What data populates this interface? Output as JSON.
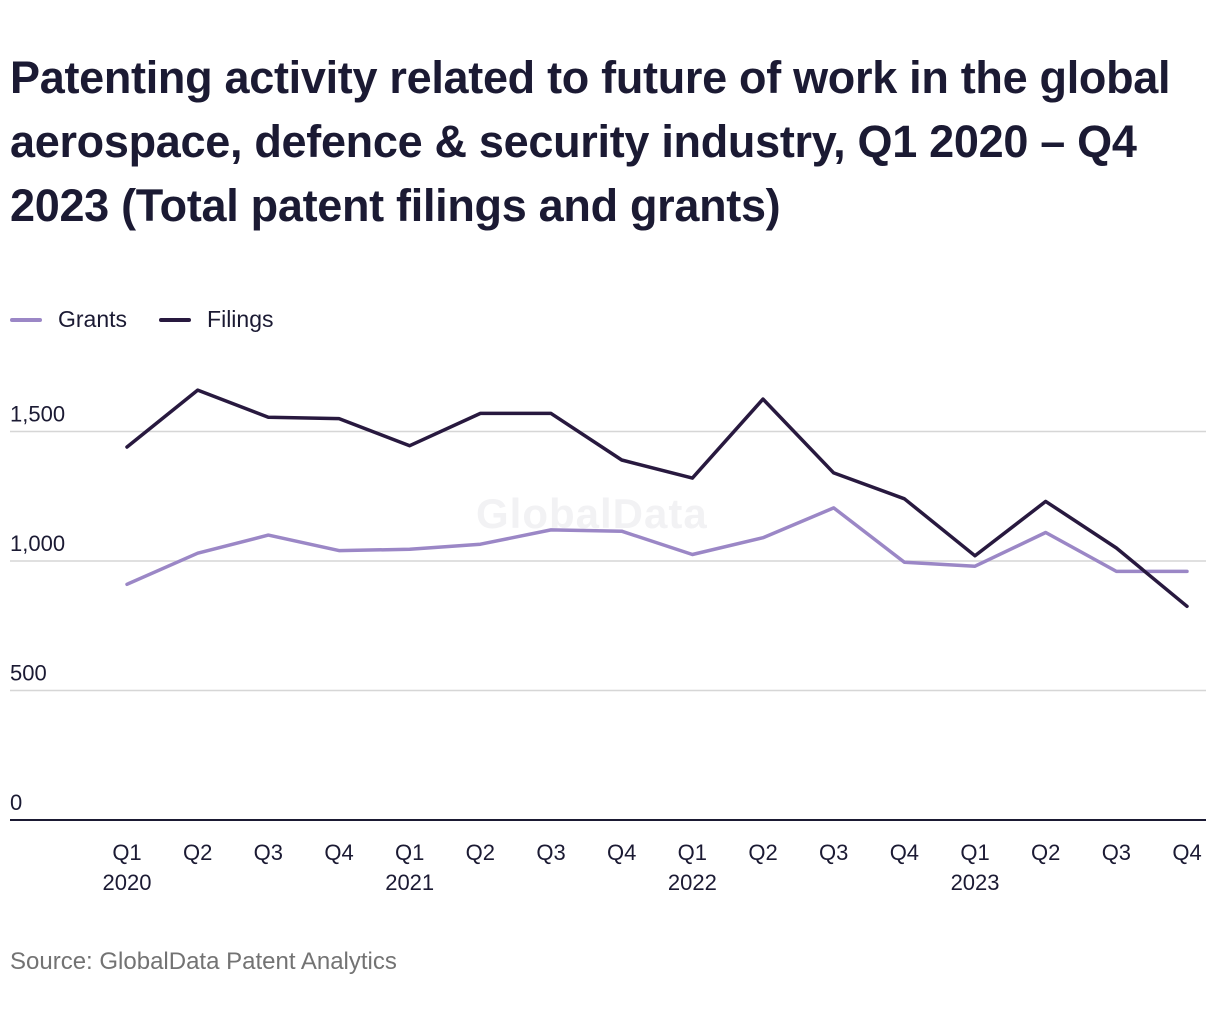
{
  "title": "Patenting activity related to future of work in the global aerospace, defence & security industry, Q1 2020 – Q4 2023 (Total patent filings and grants)",
  "source": "Source: GlobalData Patent Analytics",
  "watermark": "GlobalData",
  "colors": {
    "grants": "#9b87c6",
    "filings": "#28193f",
    "grid": "#d6d6d6",
    "axis": "#1b1a33",
    "text": "#1b1a33"
  },
  "legend": [
    {
      "label": "Grants",
      "color": "#9b87c6"
    },
    {
      "label": "Filings",
      "color": "#28193f"
    }
  ],
  "chart_data": {
    "type": "line",
    "categories": [
      "Q1 2020",
      "Q2 2020",
      "Q3 2020",
      "Q4 2020",
      "Q1 2021",
      "Q2 2021",
      "Q3 2021",
      "Q4 2021",
      "Q1 2022",
      "Q2 2022",
      "Q3 2022",
      "Q4 2022",
      "Q1 2023",
      "Q2 2023",
      "Q3 2023",
      "Q4 2023"
    ],
    "x_tick_labels": [
      [
        "Q1",
        "2020"
      ],
      [
        "Q2",
        ""
      ],
      [
        "Q3",
        ""
      ],
      [
        "Q4",
        ""
      ],
      [
        "Q1",
        "2021"
      ],
      [
        "Q2",
        ""
      ],
      [
        "Q3",
        ""
      ],
      [
        "Q4",
        ""
      ],
      [
        "Q1",
        "2022"
      ],
      [
        "Q2",
        ""
      ],
      [
        "Q3",
        ""
      ],
      [
        "Q4",
        ""
      ],
      [
        "Q1",
        "2023"
      ],
      [
        "Q2",
        ""
      ],
      [
        "Q3",
        ""
      ],
      [
        "Q4",
        ""
      ]
    ],
    "series": [
      {
        "name": "Grants",
        "color": "#9b87c6",
        "values": [
          910,
          1030,
          1100,
          1040,
          1045,
          1065,
          1120,
          1115,
          1025,
          1090,
          1205,
          995,
          980,
          1110,
          960,
          960
        ]
      },
      {
        "name": "Filings",
        "color": "#28193f",
        "values": [
          1440,
          1660,
          1555,
          1550,
          1445,
          1570,
          1570,
          1390,
          1320,
          1625,
          1340,
          1240,
          1020,
          1230,
          1050,
          825
        ]
      }
    ],
    "yticks": [
      0,
      500,
      1000,
      1500
    ],
    "ytick_labels": [
      "0",
      "500",
      "1,000",
      "1,500"
    ],
    "ylim": [
      0,
      1700
    ],
    "grid": true,
    "legend_position": "top-left"
  }
}
